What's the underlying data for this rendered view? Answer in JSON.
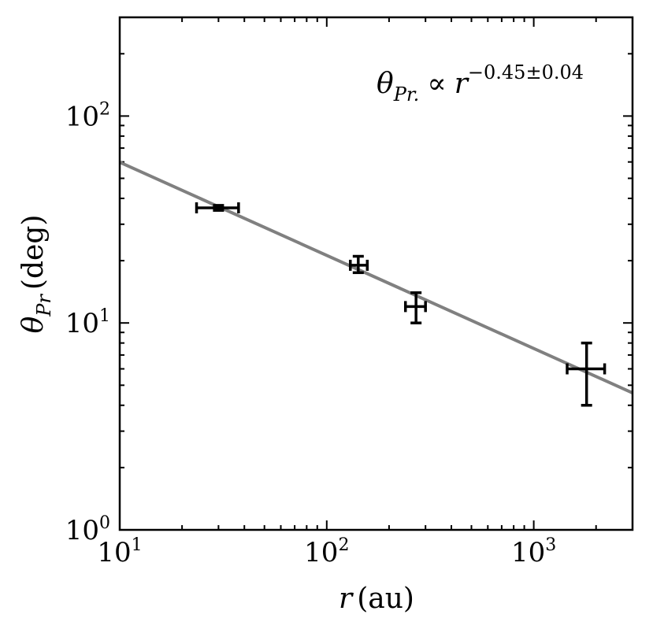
{
  "chart_data": {
    "type": "scatter",
    "x_scale": "log",
    "y_scale": "log",
    "xlim": [
      10,
      3000
    ],
    "ylim": [
      1,
      300
    ],
    "xlabel": {
      "var": "r",
      "unit": "(au)"
    },
    "ylabel": {
      "var": "θ",
      "sub": "Pr",
      "unit": "(deg)"
    },
    "x_ticks": [
      {
        "value": 10,
        "base": "10",
        "exp": "1"
      },
      {
        "value": 100,
        "base": "10",
        "exp": "2"
      },
      {
        "value": 1000,
        "base": "10",
        "exp": "3"
      }
    ],
    "y_ticks": [
      {
        "value": 1,
        "base": "10",
        "exp": "0"
      },
      {
        "value": 10,
        "base": "10",
        "exp": "1"
      },
      {
        "value": 100,
        "base": "10",
        "exp": "2"
      }
    ],
    "points": [
      {
        "x": 30,
        "y": 36,
        "xerr": [
          23.5,
          37.5
        ],
        "yerr": [
          35,
          37
        ]
      },
      {
        "x": 142,
        "y": 19,
        "xerr": [
          130,
          157
        ],
        "yerr": [
          17.5,
          21
        ]
      },
      {
        "x": 270,
        "y": 12,
        "xerr": [
          240,
          300
        ],
        "yerr": [
          10,
          14
        ]
      },
      {
        "x": 1800,
        "y": 6,
        "xerr": [
          1450,
          2200
        ],
        "yerr": [
          4,
          8
        ]
      }
    ],
    "fit": {
      "coefficient": 168.5,
      "exponent": -0.45,
      "color": "#808080"
    },
    "annotation": {
      "var": "θ",
      "sub": "Pr.",
      "relation": "∝",
      "rhs": "r",
      "exp": "−0.45±0.04"
    },
    "grid": false,
    "legend": "none",
    "marker_color": "#000000"
  }
}
